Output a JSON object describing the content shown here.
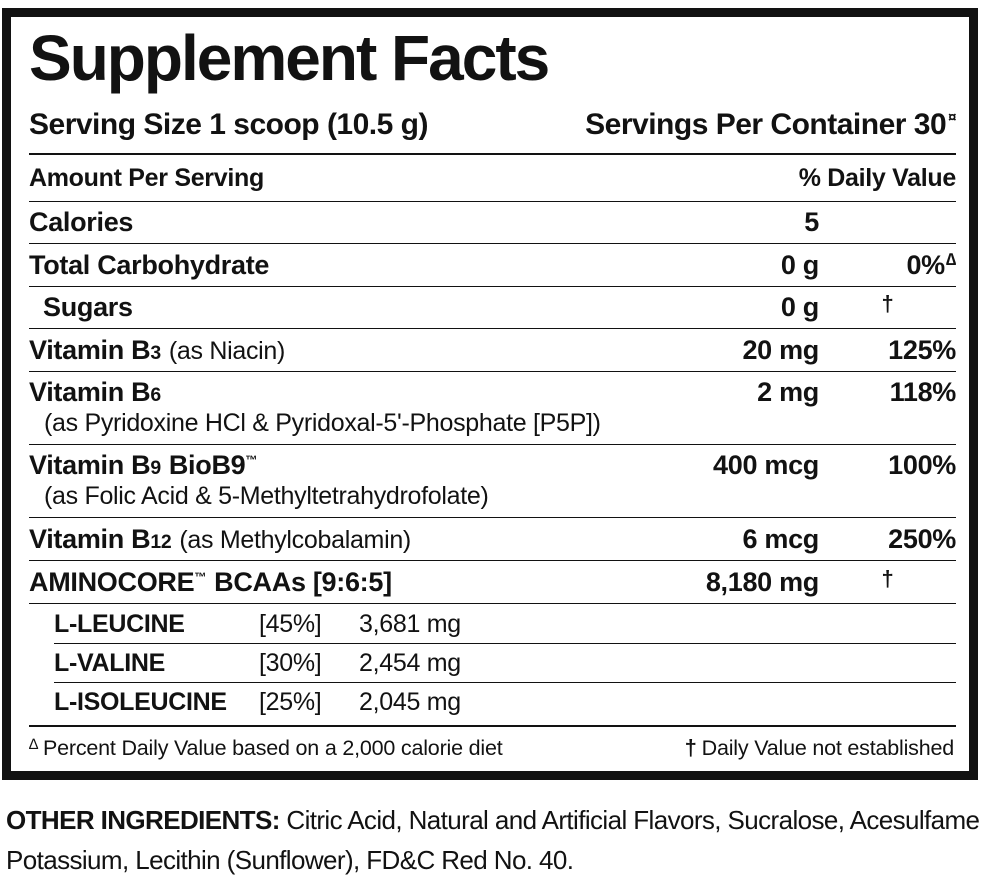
{
  "panel": {
    "title": "Supplement Facts",
    "serving_size": "Serving Size 1 scoop (10.5 g)",
    "servings_per_container": "Servings Per Container 30",
    "servings_note_symbol": "¤",
    "columns": {
      "amount_header": "Amount Per Serving",
      "dv_header": "% Daily Value"
    },
    "rows": [
      {
        "name": "Calories",
        "amount": "5",
        "dv": ""
      },
      {
        "name": "Total Carbohydrate",
        "amount": "0 g",
        "dv": "0%",
        "dv_note": "∆"
      },
      {
        "name": "Sugars",
        "amount": "0 g",
        "dv": "†"
      },
      {
        "name": "Vitamin B",
        "name_sub": "3",
        "detail": "(as Niacin)",
        "amount": "20 mg",
        "dv": "125%"
      },
      {
        "name": "Vitamin B",
        "name_sub": "6",
        "source_line": "(as Pyridoxine HCl & Pyridoxal-5'-Phosphate [P5P])",
        "amount": "2 mg",
        "dv": "118%"
      },
      {
        "name": "Vitamin B",
        "name_sub": "9",
        "name_post": "BioB9",
        "trademark": "™",
        "source_line": "(as Folic Acid & 5-Methyltetrahydrofolate)",
        "amount": "400 mcg",
        "dv": "100%"
      },
      {
        "name": "Vitamin B",
        "name_sub": "12",
        "detail": "(as Methylcobalamin)",
        "amount": "6 mcg",
        "dv": "250%"
      }
    ],
    "bcaa": {
      "name": "AMINOCORE",
      "trademark": "™",
      "name_rest": "BCAAs [9:6:5]",
      "amount": "8,180 mg",
      "dv": "†",
      "items": [
        {
          "name": "L-LEUCINE",
          "ratio": "[45%]",
          "amount": "3,681 mg"
        },
        {
          "name": "L-VALINE",
          "ratio": "[30%]",
          "amount": "2,454 mg"
        },
        {
          "name": "L-ISOLEUCINE",
          "ratio": "[25%]",
          "amount": "2,045 mg"
        }
      ]
    },
    "footnotes": {
      "left_symbol": "∆",
      "left_text": "Percent Daily Value based on a 2,000 calorie diet",
      "right_symbol": "†",
      "right_text": "Daily Value not established"
    }
  },
  "other_ingredients": {
    "label": "OTHER INGREDIENTS:",
    "text": "Citric Acid, Natural and Artificial Flavors, Sucralose, Acesulfame Potassium, Lecithin (Sunflower), FD&C Red No. 40."
  }
}
